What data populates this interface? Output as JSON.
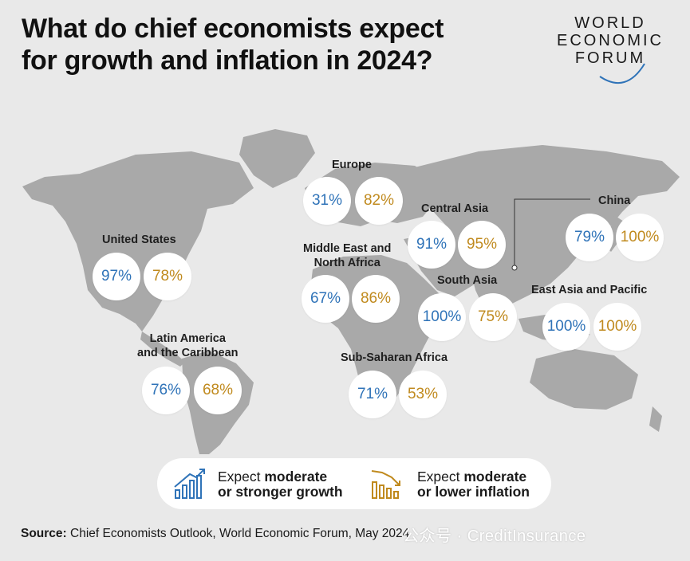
{
  "title_line1": "What do chief economists expect",
  "title_line2": "for growth and inflation in 2024?",
  "logo": {
    "line1": "WORLD",
    "line2": "ECONOMIC",
    "line3": "FORUM"
  },
  "colors": {
    "growth": "#2f73b8",
    "inflation": "#c08a1e",
    "land": "#a9a9a9",
    "background": "#e9e9e9"
  },
  "regions": [
    {
      "name": "United States",
      "growth": "97%",
      "inflation": "78%"
    },
    {
      "name": "Latin America and the Caribbean",
      "line1": "Latin America",
      "line2": "and the Caribbean",
      "growth": "76%",
      "inflation": "68%"
    },
    {
      "name": "Europe",
      "growth": "31%",
      "inflation": "82%"
    },
    {
      "name": "Middle East and North Africa",
      "line1": "Middle East and",
      "line2": "North Africa",
      "growth": "67%",
      "inflation": "86%"
    },
    {
      "name": "Sub-Saharan Africa",
      "growth": "71%",
      "inflation": "53%"
    },
    {
      "name": "Central Asia",
      "growth": "91%",
      "inflation": "95%"
    },
    {
      "name": "South Asia",
      "growth": "100%",
      "inflation": "75%"
    },
    {
      "name": "China",
      "growth": "79%",
      "inflation": "100%"
    },
    {
      "name": "East Asia and Pacific",
      "growth": "100%",
      "inflation": "100%"
    }
  ],
  "legend": {
    "growth_prefix": "Expect ",
    "growth_bold1": "moderate",
    "growth_line2": "or stronger growth",
    "growth_icon": "rising-bar-chart-icon",
    "inflation_prefix": "Expect ",
    "inflation_bold1": "moderate",
    "inflation_line2": "or lower inflation",
    "inflation_icon": "falling-bar-chart-icon"
  },
  "source": {
    "label": "Source:",
    "text": " Chief Economists Outlook, World Economic Forum, May 2024"
  },
  "watermark": "公众号 · CreditInsurance"
}
